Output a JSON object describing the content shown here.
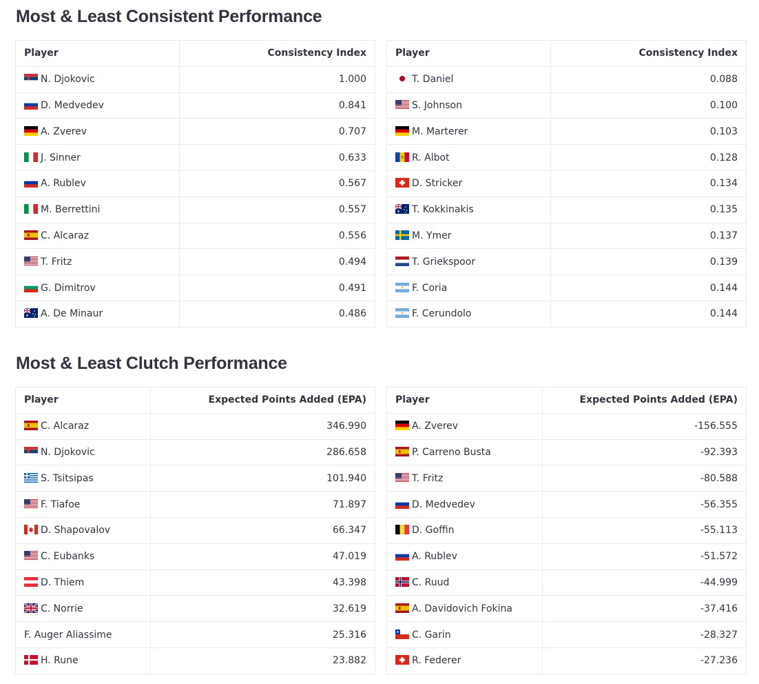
{
  "sections": {
    "consistency_title": "Most & Least Consistent Performance",
    "clutch_title": "Most & Least Clutch Performance"
  },
  "tables": {
    "consistency_top": {
      "headers": [
        "Player",
        "Consistency Index"
      ],
      "rows": [
        {
          "flag": "serbia",
          "player": "N. Djokovic",
          "value": "1.000"
        },
        {
          "flag": "russia",
          "player": "D. Medvedev",
          "value": "0.841"
        },
        {
          "flag": "germany",
          "player": "A. Zverev",
          "value": "0.707"
        },
        {
          "flag": "italy",
          "player": "J. Sinner",
          "value": "0.633"
        },
        {
          "flag": "russia",
          "player": "A. Rublev",
          "value": "0.567"
        },
        {
          "flag": "italy",
          "player": "M. Berrettini",
          "value": "0.557"
        },
        {
          "flag": "spain",
          "player": "C. Alcaraz",
          "value": "0.556"
        },
        {
          "flag": "usa",
          "player": "T. Fritz",
          "value": "0.494"
        },
        {
          "flag": "bulgaria",
          "player": "G. Dimitrov",
          "value": "0.491"
        },
        {
          "flag": "australia",
          "player": "A. De Minaur",
          "value": "0.486"
        }
      ]
    },
    "consistency_bottom": {
      "headers": [
        "Player",
        "Consistency Index"
      ],
      "rows": [
        {
          "flag": "japan",
          "player": "T. Daniel",
          "value": "0.088"
        },
        {
          "flag": "usa",
          "player": "S. Johnson",
          "value": "0.100"
        },
        {
          "flag": "germany",
          "player": "M. Marterer",
          "value": "0.103"
        },
        {
          "flag": "moldova",
          "player": "R. Albot",
          "value": "0.128"
        },
        {
          "flag": "switzerland",
          "player": "D. Stricker",
          "value": "0.134"
        },
        {
          "flag": "australia",
          "player": "T. Kokkinakis",
          "value": "0.135"
        },
        {
          "flag": "sweden",
          "player": "M. Ymer",
          "value": "0.137"
        },
        {
          "flag": "netherlands",
          "player": "T. Griekspoor",
          "value": "0.139"
        },
        {
          "flag": "argentina",
          "player": "F. Coria",
          "value": "0.144"
        },
        {
          "flag": "argentina",
          "player": "F. Cerundolo",
          "value": "0.144"
        }
      ]
    },
    "clutch_top": {
      "headers": [
        "Player",
        "Expected Points Added (EPA)"
      ],
      "rows": [
        {
          "flag": "spain",
          "player": "C. Alcaraz",
          "value": "346.990"
        },
        {
          "flag": "serbia",
          "player": "N. Djokovic",
          "value": "286.658"
        },
        {
          "flag": "greece",
          "player": "S. Tsitsipas",
          "value": "101.940"
        },
        {
          "flag": "usa",
          "player": "F. Tiafoe",
          "value": "71.897"
        },
        {
          "flag": "canada",
          "player": "D. Shapovalov",
          "value": "66.347"
        },
        {
          "flag": "usa",
          "player": "C. Eubanks",
          "value": "47.019"
        },
        {
          "flag": "austria",
          "player": "D. Thiem",
          "value": "43.398"
        },
        {
          "flag": "uk",
          "player": "C. Norrie",
          "value": "32.619"
        },
        {
          "flag": "",
          "player": "F. Auger Aliassime",
          "value": "25.316"
        },
        {
          "flag": "denmark",
          "player": "H. Rune",
          "value": "23.882"
        }
      ]
    },
    "clutch_bottom": {
      "headers": [
        "Player",
        "Expected Points Added (EPA)"
      ],
      "rows": [
        {
          "flag": "germany",
          "player": "A. Zverev",
          "value": "-156.555"
        },
        {
          "flag": "spain",
          "player": "P. Carreno Busta",
          "value": "-92.393"
        },
        {
          "flag": "usa",
          "player": "T. Fritz",
          "value": "-80.588"
        },
        {
          "flag": "russia",
          "player": "D. Medvedev",
          "value": "-56.355"
        },
        {
          "flag": "belgium",
          "player": "D. Goffin",
          "value": "-55.113"
        },
        {
          "flag": "russia",
          "player": "A. Rublev",
          "value": "-51.572"
        },
        {
          "flag": "norway",
          "player": "C. Ruud",
          "value": "-44.999"
        },
        {
          "flag": "spain",
          "player": "A. Davidovich Fokina",
          "value": "-37.416"
        },
        {
          "flag": "chile",
          "player": "C. Garin",
          "value": "-28.327"
        },
        {
          "flag": "switzerland",
          "player": "R. Federer",
          "value": "-27.236"
        }
      ]
    }
  }
}
